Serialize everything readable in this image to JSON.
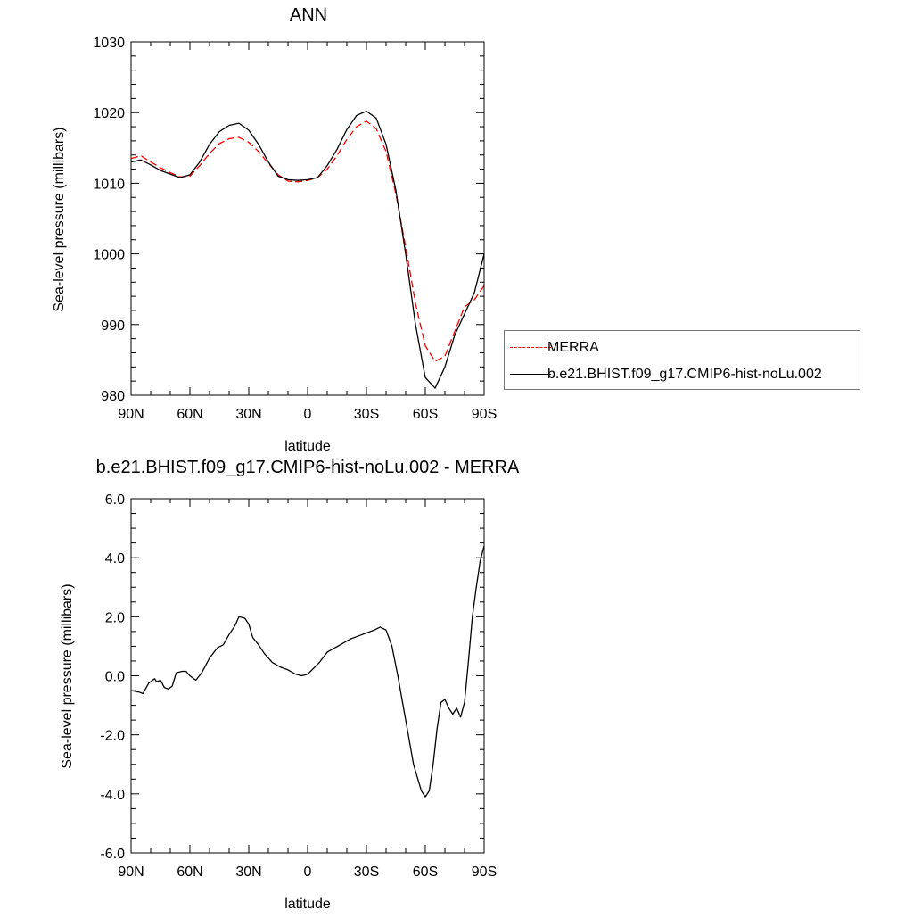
{
  "chart_data": [
    {
      "type": "line",
      "title": "ANN",
      "xlabel": "latitude",
      "ylabel": "Sea-level pressure (millibars)",
      "x_tick_labels": [
        "90N",
        "60N",
        "30N",
        "0",
        "30S",
        "60S",
        "90S"
      ],
      "y_tick_labels": [
        "980",
        "990",
        "1000",
        "1010",
        "1020",
        "1030"
      ],
      "ylim": [
        980,
        1030
      ],
      "xlim": [
        90,
        -90
      ],
      "grid": false,
      "legend_position": "right",
      "series": [
        {
          "name": "MERRA",
          "color": "#ff0000",
          "style": "dashed",
          "x": [
            90,
            85,
            80,
            75,
            70,
            65,
            60,
            55,
            50,
            45,
            40,
            35,
            30,
            25,
            20,
            15,
            10,
            5,
            0,
            -5,
            -10,
            -15,
            -20,
            -25,
            -30,
            -35,
            -40,
            -45,
            -50,
            -55,
            -60,
            -65,
            -70,
            -75,
            -80,
            -85,
            -90
          ],
          "values": [
            1013.5,
            1013.9,
            1013.0,
            1012.2,
            1011.5,
            1010.9,
            1011.0,
            1012.5,
            1014.2,
            1015.6,
            1016.3,
            1016.5,
            1015.8,
            1014.5,
            1012.8,
            1011.2,
            1010.3,
            1010.2,
            1010.4,
            1010.8,
            1012.0,
            1013.9,
            1016.2,
            1018.0,
            1018.8,
            1017.7,
            1014.5,
            1008.5,
            1001.0,
            993.0,
            987.0,
            984.8,
            985.5,
            989.0,
            992.5,
            993.5,
            995.5
          ]
        },
        {
          "name": "b.e21.BHIST.f09_g17.CMIP6-hist-noLu.002",
          "color": "#000000",
          "style": "solid",
          "x": [
            90,
            85,
            80,
            75,
            70,
            65,
            60,
            55,
            50,
            45,
            40,
            35,
            30,
            25,
            20,
            15,
            10,
            5,
            0,
            -5,
            -10,
            -15,
            -20,
            -25,
            -30,
            -35,
            -40,
            -45,
            -50,
            -55,
            -60,
            -65,
            -70,
            -75,
            -80,
            -85,
            -90
          ],
          "values": [
            1013.0,
            1013.3,
            1012.6,
            1011.8,
            1011.3,
            1010.8,
            1011.2,
            1013.0,
            1015.5,
            1017.3,
            1018.2,
            1018.5,
            1017.5,
            1015.5,
            1013.0,
            1011.0,
            1010.5,
            1010.4,
            1010.5,
            1010.8,
            1012.5,
            1014.8,
            1017.6,
            1019.6,
            1020.2,
            1019.2,
            1015.5,
            1009.0,
            1000.0,
            990.0,
            982.5,
            981.0,
            984.0,
            988.5,
            991.5,
            994.5,
            1000.0
          ]
        }
      ]
    },
    {
      "type": "line",
      "title": "b.e21.BHIST.f09_g17.CMIP6-hist-noLu.002 - MERRA",
      "xlabel": "latitude",
      "ylabel": "Sea-level pressure (millibars)",
      "x_tick_labels": [
        "90N",
        "60N",
        "30N",
        "0",
        "30S",
        "60S",
        "90S"
      ],
      "y_tick_labels": [
        "6.0",
        "4.0",
        "2.0",
        "0.0",
        "-2.0",
        "-4.0",
        "-6.0"
      ],
      "ylim": [
        -6,
        6
      ],
      "xlim": [
        90,
        -90
      ],
      "grid": false,
      "series": [
        {
          "color": "#000000",
          "style": "solid",
          "x": [
            90,
            86,
            84,
            81,
            78,
            77,
            75,
            73,
            71,
            69,
            67,
            64,
            62,
            60,
            57,
            54,
            50,
            46,
            43,
            40,
            37,
            35,
            32,
            30,
            28,
            25,
            22,
            18,
            14,
            10,
            6,
            3,
            0,
            -3,
            -6,
            -10,
            -14,
            -18,
            -22,
            -26,
            -30,
            -34,
            -37,
            -40,
            -43,
            -46,
            -50,
            -54,
            -58,
            -60,
            -62,
            -64,
            -66,
            -68,
            -70,
            -72,
            -74,
            -76,
            -78,
            -80,
            -82,
            -84,
            -86,
            -88,
            -90
          ],
          "values": [
            -0.5,
            -0.55,
            -0.6,
            -0.25,
            -0.1,
            -0.2,
            -0.15,
            -0.4,
            -0.45,
            -0.35,
            0.1,
            0.15,
            0.15,
            0.0,
            -0.15,
            0.1,
            0.6,
            0.95,
            1.05,
            1.4,
            1.7,
            2.0,
            1.95,
            1.75,
            1.3,
            1.05,
            0.75,
            0.45,
            0.3,
            0.2,
            0.05,
            0.0,
            0.05,
            0.25,
            0.45,
            0.8,
            0.95,
            1.1,
            1.25,
            1.35,
            1.45,
            1.55,
            1.65,
            1.55,
            1.0,
            0.0,
            -1.5,
            -3.0,
            -3.9,
            -4.1,
            -3.9,
            -3.0,
            -1.8,
            -0.9,
            -0.8,
            -1.1,
            -1.3,
            -1.1,
            -1.4,
            -0.9,
            0.5,
            2.0,
            3.0,
            3.9,
            4.4
          ]
        }
      ]
    }
  ],
  "legend": {
    "entries": [
      {
        "label": "MERRA",
        "color": "#ff0000",
        "style": "dashed"
      },
      {
        "label": "b.e21.BHIST.f09_g17.CMIP6-hist-noLu.002",
        "color": "#000000",
        "style": "solid"
      }
    ]
  }
}
